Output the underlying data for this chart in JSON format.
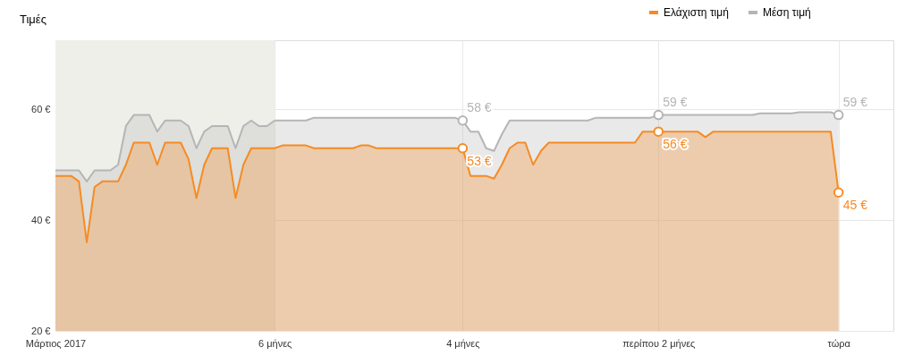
{
  "chart_data": {
    "type": "area",
    "title": "Τιμές",
    "categories": [
      "Μάρτιος 2017",
      null,
      null,
      null,
      null,
      null,
      null,
      null,
      null,
      null,
      null,
      null,
      null,
      null,
      null,
      null,
      null,
      null,
      null,
      null,
      null,
      null,
      null,
      null,
      null,
      null,
      null,
      null,
      "6 μήνες",
      null,
      null,
      null,
      null,
      null,
      null,
      null,
      null,
      null,
      null,
      null,
      null,
      null,
      null,
      null,
      null,
      null,
      null,
      null,
      null,
      null,
      null,
      null,
      "4 μήνες",
      null,
      null,
      null,
      null,
      null,
      null,
      null,
      null,
      null,
      null,
      null,
      null,
      null,
      null,
      null,
      null,
      null,
      null,
      null,
      null,
      null,
      null,
      null,
      null,
      "περίπου 2 μήνες",
      null,
      null,
      null,
      null,
      null,
      null,
      null,
      null,
      null,
      null,
      null,
      null,
      null,
      null,
      null,
      null,
      null,
      null,
      null,
      null,
      null,
      null,
      "τώρα",
      null,
      null,
      null,
      null,
      null,
      null,
      null
    ],
    "ylim": [
      20,
      72.5
    ],
    "yticks": [
      {
        "value": 20,
        "label": "20 €"
      },
      {
        "value": 40,
        "label": "40 €"
      },
      {
        "value": 60,
        "label": "60 €"
      }
    ],
    "grid": true,
    "legend": "top right",
    "bands": [
      {
        "axis": "x",
        "from": "Μάρτιος 2017",
        "to": "6 μήνες",
        "color": "#efefea"
      }
    ],
    "series": [
      {
        "name": "Ελάχιστη τιμή",
        "color": "#f68b24",
        "values": [
          48,
          48,
          48,
          47,
          36,
          46,
          47,
          47,
          47,
          50,
          54,
          54,
          54,
          50,
          54,
          54,
          54,
          51,
          44,
          50,
          53,
          53,
          53,
          44,
          50,
          53,
          53,
          53,
          53,
          53.5,
          53.5,
          53.5,
          53.5,
          53,
          53,
          53,
          53,
          53,
          53,
          53.5,
          53.5,
          53,
          53,
          53,
          53,
          53,
          53,
          53,
          53,
          53,
          53,
          53,
          53,
          48,
          48,
          48,
          47.5,
          50,
          53,
          54,
          54,
          50,
          52.5,
          54,
          54,
          54,
          54,
          54,
          54,
          54,
          54,
          54,
          54,
          54,
          54,
          56,
          56,
          56,
          56,
          56,
          56,
          56,
          56,
          55,
          56,
          56,
          56,
          56,
          56,
          56,
          56,
          56,
          56,
          56,
          56,
          56,
          56,
          56,
          56,
          56,
          45,
          null,
          null,
          null,
          null,
          null,
          null,
          null
        ]
      },
      {
        "name": "Μέση τιμή",
        "color": "#b5b5b5",
        "values": [
          49,
          49,
          49,
          49,
          47,
          49,
          49,
          49,
          50,
          57,
          59,
          59,
          59,
          56,
          58,
          58,
          58,
          57,
          53,
          56,
          57,
          57,
          57,
          53,
          57,
          58,
          57,
          57,
          58,
          58,
          58,
          58,
          58,
          58.5,
          58.5,
          58.5,
          58.5,
          58.5,
          58.5,
          58.5,
          58.5,
          58.5,
          58.5,
          58.5,
          58.5,
          58.5,
          58.5,
          58.5,
          58.5,
          58.5,
          58.5,
          58.5,
          58,
          56,
          56,
          53,
          52.5,
          55.5,
          58,
          58,
          58,
          58,
          58,
          58,
          58,
          58,
          58,
          58,
          58,
          58.5,
          58.5,
          58.5,
          58.5,
          58.5,
          58.5,
          58.5,
          58.5,
          59,
          59,
          59,
          59,
          59,
          59,
          59,
          59,
          59,
          59,
          59,
          59,
          59,
          59.3,
          59.3,
          59.3,
          59.3,
          59.3,
          59.5,
          59.5,
          59.5,
          59.5,
          59.5,
          59,
          null,
          null,
          null,
          null,
          null,
          null,
          null
        ]
      }
    ],
    "annotations": [
      {
        "text": "58 €",
        "x": "4 μήνες",
        "y": 58
      },
      {
        "text": "53 €",
        "x": "4 μήνες",
        "y": 53
      },
      {
        "text": "59 €",
        "x": "περίπου 2 μήνες",
        "y": 59
      },
      {
        "text": "56 €",
        "x": "περίπου 2 μήνες",
        "y": 56
      },
      {
        "text": "59 €",
        "x": "τώρα",
        "y": 59
      },
      {
        "text": "45 €",
        "x": "τώρα",
        "y": 45
      }
    ]
  }
}
